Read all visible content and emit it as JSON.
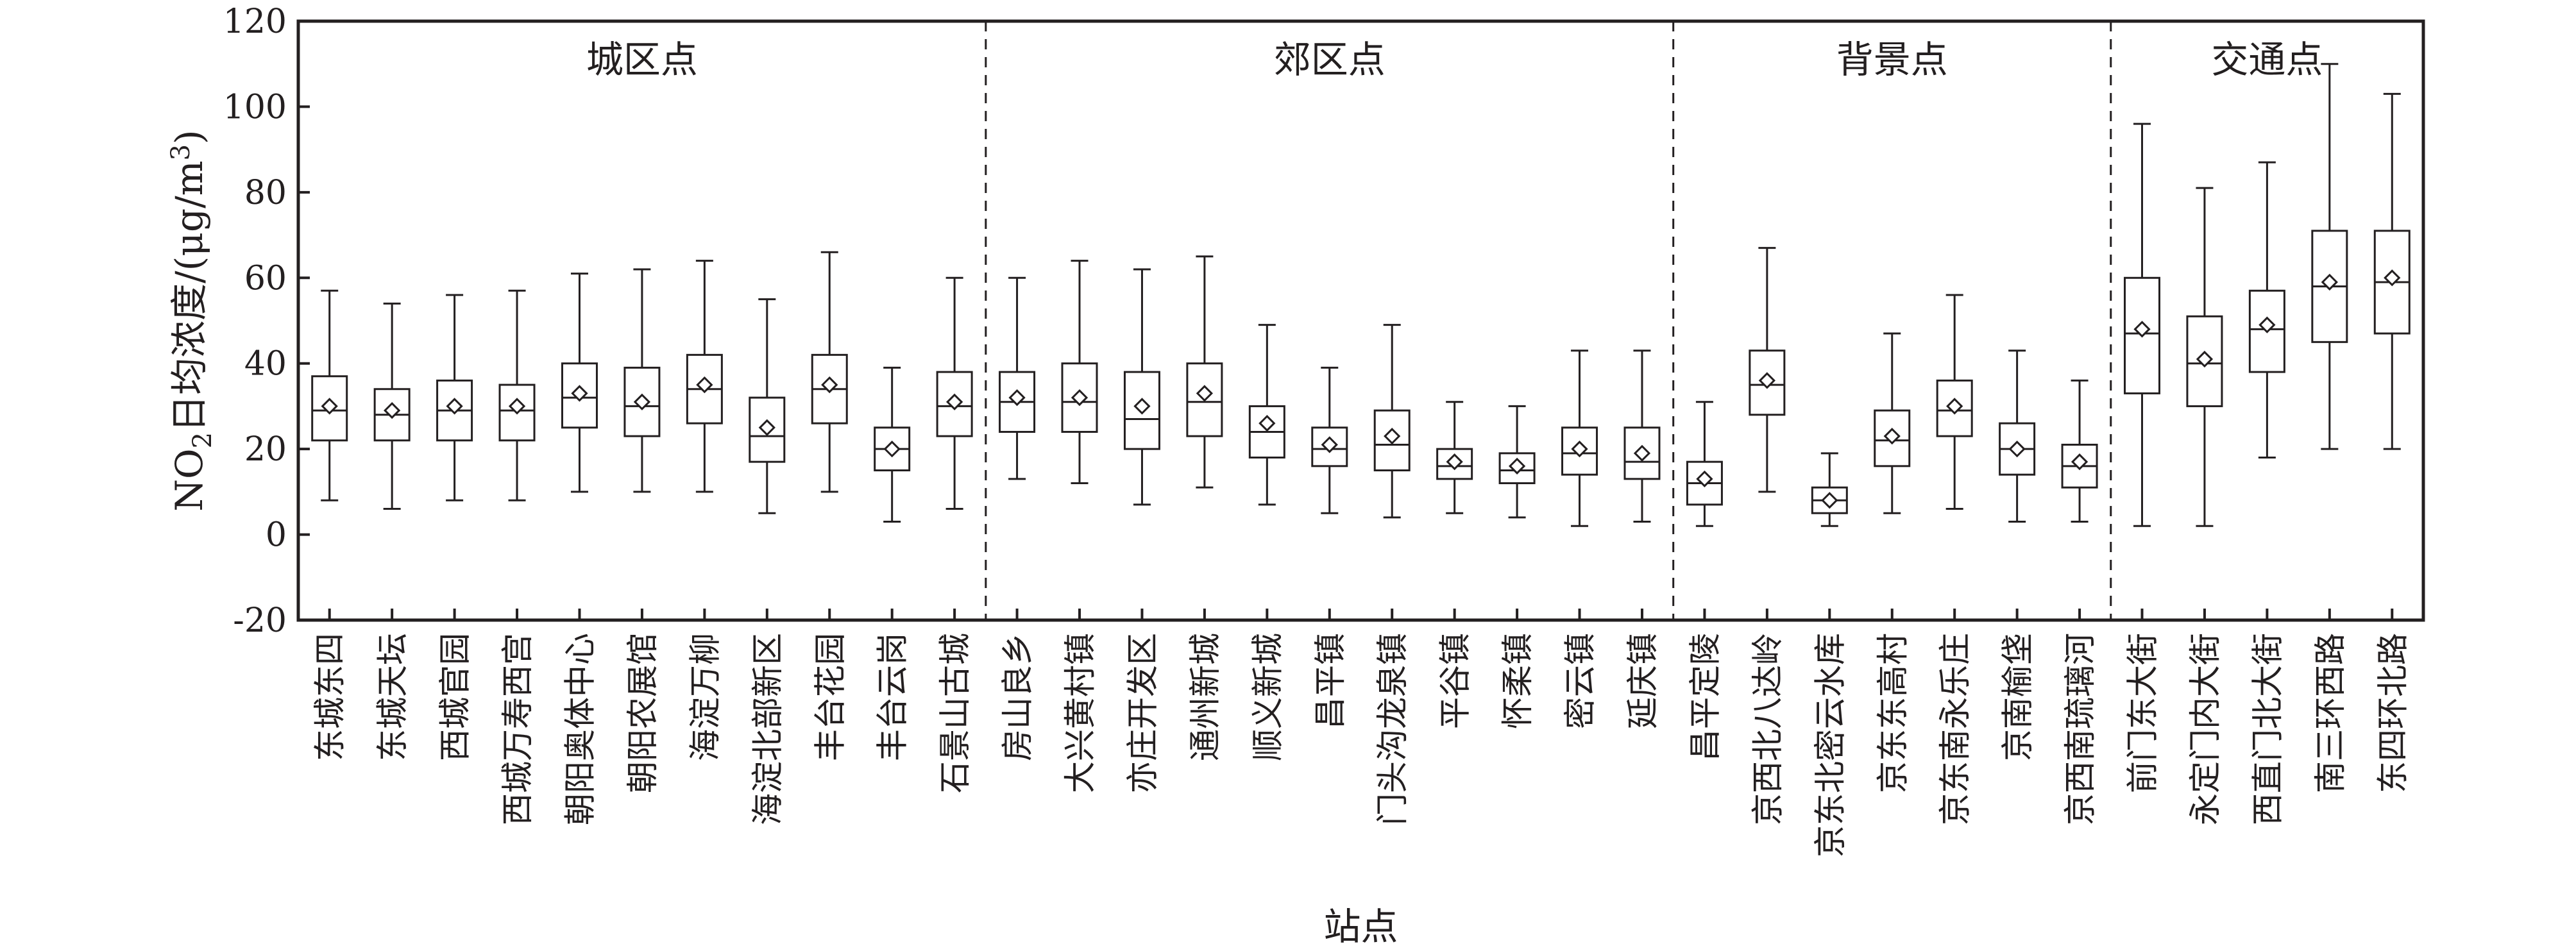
{
  "chart_data": {
    "type": "boxplot",
    "ylabel_parts": {
      "pre": "NO",
      "sub": "2",
      "mid": "日均浓度/(μg/m",
      "sup": "3",
      "post": ")"
    },
    "xlabel": "站点",
    "ylim": [
      -20,
      120
    ],
    "yticks": [
      -20,
      0,
      20,
      40,
      60,
      80,
      100,
      120
    ],
    "grid": false,
    "groups": [
      {
        "name": "城区点",
        "count": 11
      },
      {
        "name": "郊区点",
        "count": 11
      },
      {
        "name": "背景点",
        "count": 7
      },
      {
        "name": "交通点",
        "count": 5
      }
    ],
    "categories": [
      "东城东四",
      "东城天坛",
      "西城官园",
      "西城万寿西宫",
      "朝阳奥体中心",
      "朝阳农展馆",
      "海淀万柳",
      "海淀北部新区",
      "丰台花园",
      "丰台云岗",
      "石景山古城",
      "房山良乡",
      "大兴黄村镇",
      "亦庄开发区",
      "通州新城",
      "顺义新城",
      "昌平镇",
      "门头沟龙泉镇",
      "平谷镇",
      "怀柔镇",
      "密云镇",
      "延庆镇",
      "昌平定陵",
      "京西北八达岭",
      "京东北密云水库",
      "京东东高村",
      "京东南永乐庄",
      "京南榆垡",
      "京西南琉璃河",
      "前门东大街",
      "永定门内大街",
      "西直门北大街",
      "南三环西路",
      "东四环北路"
    ],
    "series": [
      {
        "min": [
          8,
          6,
          8,
          8,
          10,
          10,
          10,
          5,
          10,
          3,
          6,
          13,
          12,
          7,
          11,
          7,
          5,
          4,
          5,
          4,
          2,
          3,
          2,
          10,
          2,
          5,
          6,
          3,
          3,
          2,
          2,
          18,
          20,
          20
        ],
        "q1": [
          22,
          22,
          22,
          22,
          25,
          23,
          26,
          17,
          26,
          15,
          23,
          24,
          24,
          20,
          23,
          18,
          16,
          15,
          13,
          12,
          14,
          13,
          7,
          28,
          5,
          16,
          23,
          14,
          11,
          33,
          30,
          38,
          45,
          47
        ],
        "median": [
          29,
          28,
          29,
          29,
          32,
          30,
          34,
          23,
          34,
          20,
          30,
          31,
          31,
          27,
          31,
          24,
          20,
          21,
          16,
          15,
          19,
          17,
          12,
          35,
          8,
          22,
          29,
          20,
          16,
          47,
          40,
          48,
          58,
          59
        ],
        "q3": [
          37,
          34,
          36,
          35,
          40,
          39,
          42,
          32,
          42,
          25,
          38,
          38,
          40,
          38,
          40,
          30,
          25,
          29,
          20,
          19,
          25,
          25,
          17,
          43,
          11,
          29,
          36,
          26,
          21,
          60,
          51,
          57,
          71,
          71
        ],
        "max": [
          57,
          54,
          56,
          57,
          61,
          62,
          64,
          55,
          66,
          39,
          60,
          60,
          64,
          62,
          65,
          49,
          39,
          49,
          31,
          30,
          43,
          43,
          31,
          67,
          19,
          47,
          56,
          43,
          36,
          96,
          81,
          87,
          110,
          103
        ],
        "mean": [
          30,
          29,
          30,
          30,
          33,
          31,
          35,
          25,
          35,
          20,
          31,
          32,
          32,
          30,
          33,
          26,
          21,
          23,
          17,
          16,
          20,
          19,
          13,
          36,
          8,
          23,
          30,
          20,
          17,
          48,
          41,
          49,
          59,
          60
        ]
      }
    ]
  }
}
